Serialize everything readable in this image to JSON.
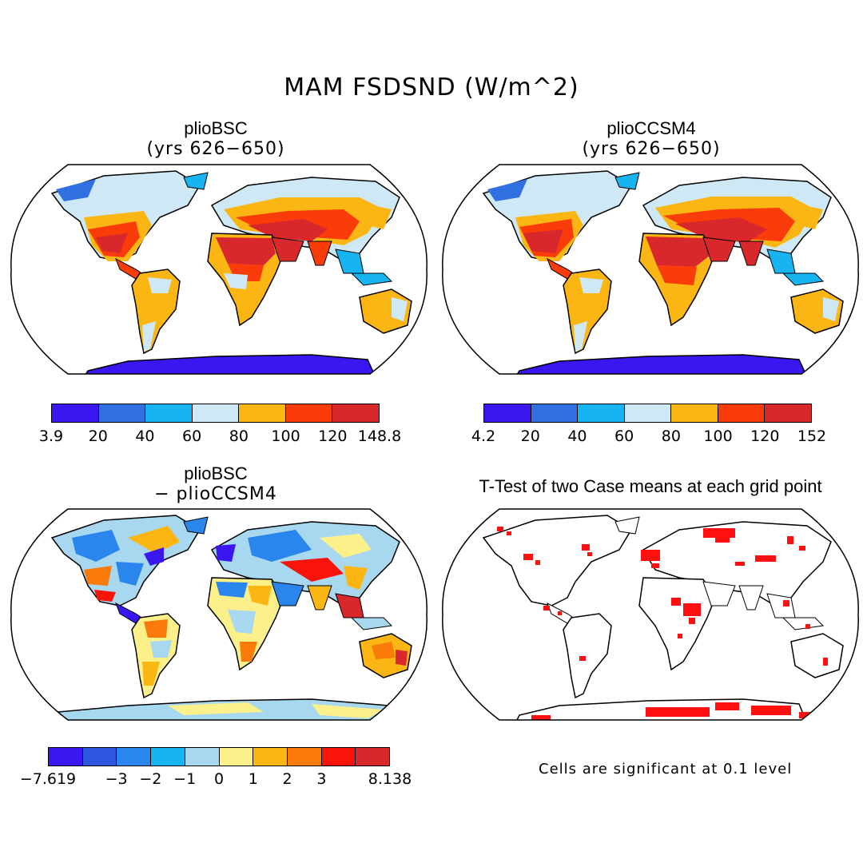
{
  "title": "MAM FSDSND (W/m^2)",
  "panels": [
    {
      "title": "plioBSC",
      "subtitle": "(yrs 626−650)"
    },
    {
      "title": "plioCCSM4",
      "subtitle": "(yrs 626−650)"
    },
    {
      "title": "plioBSC",
      "subtitle": "− plioCCSM4"
    },
    {
      "title": "T-Test of two Case means at each grid point",
      "subtitle": ""
    }
  ],
  "colorbars": {
    "bsc": {
      "colors": [
        "#3a17f0",
        "#3070e0",
        "#16b4f0",
        "#cfe8f6",
        "#fbb614",
        "#fa3c0a",
        "#d8282c"
      ],
      "labels": [
        "3.9",
        "20",
        "40",
        "60",
        "80",
        "100",
        "120",
        "148.8"
      ]
    },
    "ccsm4": {
      "colors": [
        "#3a17f0",
        "#3070e0",
        "#16b4f0",
        "#cfe8f6",
        "#fbb614",
        "#fa3c0a",
        "#d8282c"
      ],
      "labels": [
        "4.2",
        "20",
        "40",
        "60",
        "80",
        "100",
        "120",
        "152"
      ]
    },
    "diff": {
      "colors": [
        "#3a17f0",
        "#2f56df",
        "#2a86ec",
        "#16b4f0",
        "#a8d8f0",
        "#fbf08a",
        "#fbb614",
        "#fa7a0a",
        "#f8140a",
        "#d8282c"
      ],
      "labels": [
        "−7.619",
        "−3",
        "−2",
        "−1",
        "0",
        "1",
        "2",
        "3",
        "8.138"
      ]
    }
  },
  "significance_note": "Cells are significant at 0.1 level",
  "colors": {
    "ocean": "#ffffff",
    "coast": "#000000",
    "significant": "#ff1010"
  }
}
